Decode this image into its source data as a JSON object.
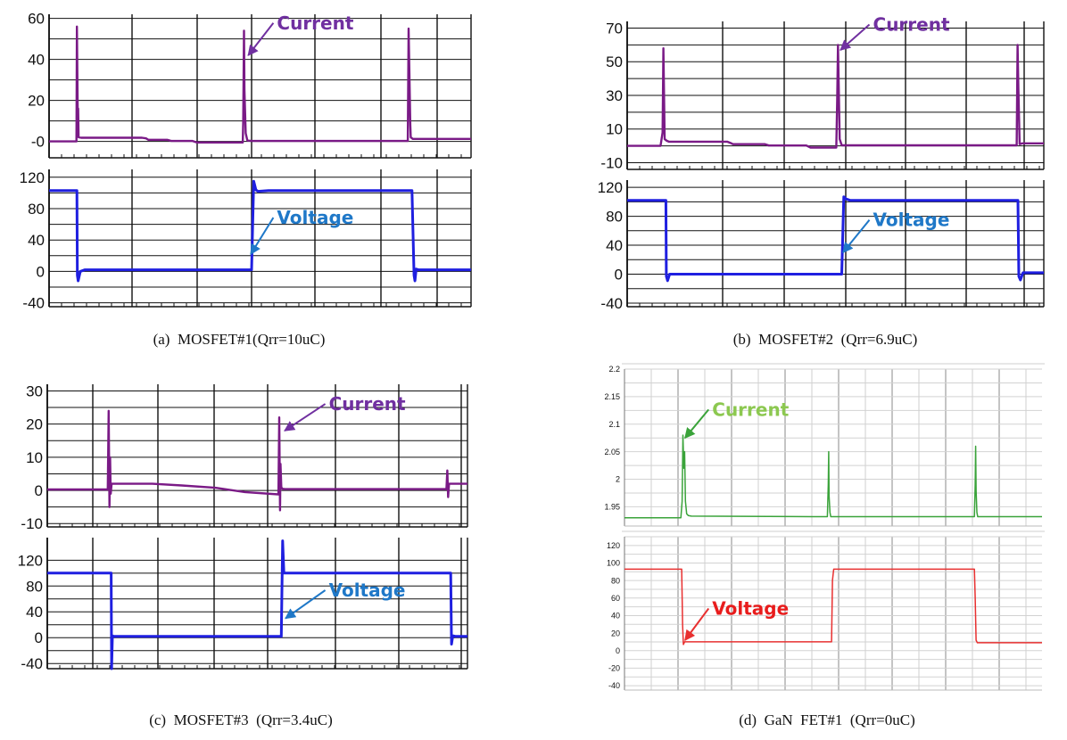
{
  "colors": {
    "mosfet_current": "#7a1a86",
    "mosfet_voltage": "#1f1fe0",
    "mosfet_current_label": "#7030a0",
    "mosfet_voltage_label": "#1f78c8",
    "gan_current": "#3aa33a",
    "gan_current_label": "#8cc850",
    "gan_voltage": "#e83030",
    "gan_voltage_label": "#e81c1c"
  },
  "chart_data": [
    {
      "type": "line",
      "caption": "(a)  MOSFET#1(Qrr=10uC)",
      "x_range": [
        0,
        100
      ],
      "panels": [
        {
          "ylim": [
            -8,
            62
          ],
          "yticks": [
            "60",
            "40",
            "20",
            "-0"
          ],
          "ytick_values": [
            60,
            40,
            20,
            0
          ],
          "series": {
            "name": "Current",
            "x": [
              0,
              6.5,
              6.6,
              6.8,
              6.9,
              7.0,
              7.6,
              8,
              22,
              23,
              23.5,
              28,
              29,
              34,
              35,
              44,
              45,
              45.9,
              46,
              46.2,
              46.3,
              46.6,
              47.0,
              48,
              58,
              70,
              82,
              85.0,
              85.2,
              85.4,
              85.6,
              85.7,
              86.2,
              100
            ],
            "y": [
              0,
              0,
              56,
              10,
              16,
              2,
              1.8,
              1.8,
              1.8,
              1.5,
              0.8,
              0.8,
              0.2,
              0.2,
              -0.5,
              -0.5,
              -0.5,
              -0.5,
              9,
              54,
              25,
              4,
              0.4,
              0.2,
              0.2,
              0.2,
              0.2,
              0.2,
              55,
              33,
              8,
              2,
              1.2,
              1.2
            ]
          }
        },
        {
          "ylim": [
            -45,
            130
          ],
          "yticks": [
            "120",
            "80",
            "40",
            "0",
            "-40"
          ],
          "ytick_values": [
            120,
            80,
            40,
            0,
            -40
          ],
          "series": {
            "name": "Voltage",
            "x": [
              0,
              6.6,
              6.7,
              6.9,
              7.4,
              8.5,
              47,
              48,
              48.5,
              49,
              49.5,
              52,
              86,
              86.5,
              86.7,
              87.0,
              87.5,
              100
            ],
            "y": [
              103,
              103,
              -5,
              -12,
              0,
              2,
              2,
              2,
              115,
              104,
              102,
              103,
              103,
              -5,
              -12,
              3,
              2,
              2
            ]
          }
        }
      ],
      "annotations": [
        {
          "text": "Current",
          "panel": 0,
          "text_x": 54,
          "text_y": 56,
          "arrow_x": 47.2,
          "arrow_y": 42
        },
        {
          "text": "Voltage",
          "panel": 1,
          "text_x": 54,
          "text_y": 64,
          "arrow_x": 47.8,
          "arrow_y": 22
        }
      ]
    },
    {
      "type": "line",
      "caption": "(b)  MOSFET#2  (Qrr=6.9uC)",
      "x_range": [
        0,
        100
      ],
      "panels": [
        {
          "ylim": [
            -14,
            74
          ],
          "yticks": [
            "70",
            "50",
            "30",
            "10",
            "-10"
          ],
          "ytick_values": [
            70,
            50,
            30,
            10,
            -10
          ],
          "series": {
            "name": "Current",
            "x": [
              0,
              8,
              8.5,
              8.7,
              9.0,
              9.5,
              10,
              24,
              25,
              25.4,
              33,
              34,
              43,
              44,
              50.2,
              50.4,
              50.6,
              51.0,
              51.5,
              53,
              70,
              85,
              93.5,
              93.7,
              93.9,
              94.2,
              94.8,
              100
            ],
            "y": [
              0,
              0,
              8,
              58,
              4,
              3,
              2.5,
              2.5,
              1.5,
              1.0,
              1.0,
              0.2,
              0.2,
              -1,
              -1,
              27,
              60,
              4,
              0.3,
              0.3,
              0.3,
              0.3,
              0.3,
              60,
              34,
              1,
              1.5,
              1.5
            ]
          }
        },
        {
          "ylim": [
            -45,
            130
          ],
          "yticks": [
            "120",
            "80",
            "40",
            "0",
            "-40"
          ],
          "ytick_values": [
            120,
            80,
            40,
            0,
            -40
          ],
          "series": {
            "name": "Voltage",
            "x": [
              0,
              9.3,
              9.4,
              9.7,
              10.2,
              11,
              51,
              51.5,
              52.0,
              52.5,
              53.5,
              93.8,
              94.0,
              94.4,
              95.0,
              100
            ],
            "y": [
              102,
              102,
              -3,
              -9,
              0,
              0,
              0,
              0,
              107,
              104,
              102,
              102,
              -3,
              -8,
              2,
              2
            ]
          }
        }
      ],
      "annotations": [
        {
          "text": "Current",
          "panel": 0,
          "text_x": 59,
          "text_y": 70,
          "arrow_x": 51.2,
          "arrow_y": 57
        },
        {
          "text": "Voltage",
          "panel": 1,
          "text_x": 59,
          "text_y": 70,
          "arrow_x": 51.8,
          "arrow_y": 30
        }
      ]
    },
    {
      "type": "line",
      "caption": "(c)  MOSFET#3  (Qrr=3.4uC)",
      "x_range": [
        0,
        100
      ],
      "panels": [
        {
          "ylim": [
            -11,
            32
          ],
          "yticks": [
            "30",
            "20",
            "10",
            "0",
            "-10"
          ],
          "ytick_values": [
            30,
            20,
            10,
            0,
            -10
          ],
          "series": {
            "name": "Current",
            "x": [
              0,
              14.4,
              14.6,
              14.8,
              14.95,
              15.1,
              15.3,
              15.8,
              17,
              25,
              32,
              40,
              47,
              55.0,
              55.2,
              55.4,
              55.5,
              55.7,
              55.9,
              56.5,
              62,
              78,
              95.0,
              95.2,
              95.4,
              95.6,
              96.0,
              100
            ],
            "y": [
              0.3,
              0.3,
              24,
              -5,
              10,
              -1,
              2,
              2,
              2,
              2,
              1.5,
              0.8,
              -0.5,
              -1.2,
              22,
              -6,
              8,
              1,
              0.5,
              0.4,
              0.4,
              0.4,
              0.4,
              6,
              -2,
              2,
              2,
              2
            ]
          }
        },
        {
          "ylim": [
            -48,
            155
          ],
          "yticks": [
            "120",
            "80",
            "40",
            "0",
            "-40"
          ],
          "ytick_values": [
            120,
            80,
            40,
            0,
            -40
          ],
          "series": {
            "name": "Voltage",
            "x": [
              0,
              15.2,
              15.3,
              15.5,
              15.8,
              16.5,
              55.6,
              55.7,
              56.0,
              56.3,
              57.5,
              96.0,
              96.2,
              96.5,
              97.2,
              100
            ],
            "y": [
              100,
              100,
              -48,
              3,
              2,
              2,
              2,
              2,
              150,
              100,
              100,
              100,
              -10,
              3,
              2,
              2
            ]
          }
        }
      ],
      "annotations": [
        {
          "text": "Current",
          "panel": 0,
          "text_x": 67,
          "text_y": 25,
          "arrow_x": 56.5,
          "arrow_y": 18
        },
        {
          "text": "Voltage",
          "panel": 1,
          "text_x": 67,
          "text_y": 68,
          "arrow_x": 56.7,
          "arrow_y": 30
        }
      ]
    },
    {
      "type": "line",
      "caption": "(d)  GaN  FET#1  (Qrr=0uC)",
      "x_range": [
        0,
        100
      ],
      "panels": [
        {
          "ylim": [
            1.915,
            2.2
          ],
          "yticks": [
            "2.2",
            "2.15",
            "2.1",
            "2.05",
            "2",
            "1.95"
          ],
          "ytick_values": [
            2.2,
            2.15,
            2.1,
            2.05,
            2.0,
            1.95
          ],
          "series": {
            "name": "Current",
            "x": [
              0,
              13.5,
              13.8,
              14.0,
              14.2,
              14.4,
              14.6,
              14.9,
              15.3,
              16,
              45,
              48.6,
              48.8,
              48.9,
              49.0,
              49.2,
              49.4,
              80,
              83.8,
              84.0,
              84.1,
              84.2,
              84.4,
              84.6,
              100
            ],
            "y": [
              1.93,
              1.93,
              1.96,
              2.08,
              2.02,
              2.05,
              1.96,
              1.937,
              1.934,
              1.933,
              1.932,
              1.932,
              1.99,
              2.05,
              1.97,
              1.94,
              1.932,
              1.932,
              1.932,
              1.99,
              2.06,
              1.98,
              1.94,
              1.932,
              1.932
            ]
          }
        },
        {
          "ylim": [
            -45,
            130
          ],
          "yticks": [
            "120",
            "100",
            "80",
            "60",
            "40",
            "20",
            "0",
            "-20",
            "-40"
          ],
          "ytick_values": [
            120,
            100,
            80,
            60,
            40,
            20,
            0,
            -20,
            -40
          ],
          "series": {
            "name": "Voltage",
            "x": [
              0,
              13.7,
              13.9,
              14.1,
              14.4,
              15,
              49.4,
              49.6,
              49.8,
              50.1,
              51,
              83.8,
              84.0,
              84.2,
              84.5,
              85.5,
              100
            ],
            "y": [
              93,
              93,
              30,
              7,
              10,
              10,
              10,
              10,
              80,
              93,
              93,
              93,
              60,
              12,
              9,
              9,
              9
            ]
          }
        }
      ],
      "annotations": [
        {
          "text": "Current",
          "panel": 0,
          "text_x": 21,
          "text_y": 2.12,
          "arrow_x": 14.5,
          "arrow_y": 2.075
        },
        {
          "text": "Voltage",
          "panel": 1,
          "text_x": 21,
          "text_y": 44,
          "arrow_x": 14.5,
          "arrow_y": 12
        }
      ]
    }
  ]
}
